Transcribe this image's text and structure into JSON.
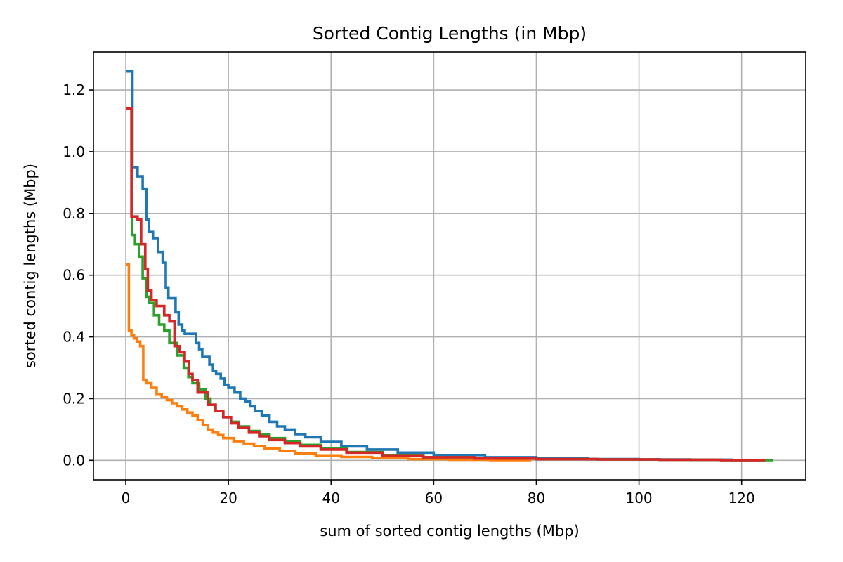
{
  "chart_data": {
    "type": "line",
    "title": "Sorted Contig Lengths (in Mbp)",
    "xlabel": "sum of sorted contig lengths (Mbp)",
    "ylabel": "sorted contig lengths (Mbp)",
    "xlim": [
      -6.3,
      132.5
    ],
    "ylim": [
      -0.063,
      1.323
    ],
    "xticks": [
      0,
      20,
      40,
      60,
      80,
      100,
      120
    ],
    "yticks": [
      0.0,
      0.2,
      0.4,
      0.6,
      0.8,
      1.0,
      1.2
    ],
    "xtick_labels": [
      "0",
      "20",
      "40",
      "60",
      "80",
      "100",
      "120"
    ],
    "ytick_labels": [
      "0.0",
      "0.2",
      "0.4",
      "0.6",
      "0.8",
      "1.0",
      "1.2"
    ],
    "grid": true,
    "step": true,
    "colors": {
      "axis": "#000000",
      "grid": "#b0b0b0"
    },
    "series": [
      {
        "color": "#1f77b4",
        "x": [
          0,
          1.3,
          1.3,
          2.3,
          2.3,
          3.3,
          3.3,
          4.0,
          4.0,
          4.5,
          4.5,
          5.3,
          5.3,
          6.3,
          6.3,
          7.2,
          7.2,
          7.8,
          7.8,
          8.3,
          8.3,
          9.7,
          9.7,
          10.3,
          10.3,
          11.0,
          11.0,
          11.5,
          11.5,
          13.7,
          13.7,
          14.3,
          14.3,
          14.9,
          14.9,
          16.3,
          16.3,
          17.0,
          17.0,
          17.6,
          17.6,
          18.5,
          18.5,
          19.2,
          19.2,
          20.0,
          20.0,
          21.2,
          21.2,
          22.3,
          22.3,
          23.3,
          23.3,
          24.3,
          24.3,
          25.2,
          25.2,
          26.5,
          26.5,
          28.0,
          28.0,
          29.5,
          29.5,
          31.0,
          31.0,
          33.0,
          33.0,
          35.0,
          35.0,
          38.0,
          38.0,
          42.0,
          42.0,
          47.0,
          47.0,
          53.0,
          53.0,
          60.0,
          60.0,
          70.0,
          70.0,
          80.0,
          80.0,
          90.0,
          90.0,
          100.0,
          100.0,
          110.0,
          110.0,
          118.0,
          118.0,
          124.6
        ],
        "y": [
          1.26,
          1.26,
          0.95,
          0.95,
          0.92,
          0.92,
          0.88,
          0.88,
          0.78,
          0.78,
          0.74,
          0.74,
          0.72,
          0.72,
          0.675,
          0.675,
          0.64,
          0.64,
          0.56,
          0.56,
          0.525,
          0.525,
          0.48,
          0.48,
          0.44,
          0.44,
          0.42,
          0.42,
          0.41,
          0.41,
          0.38,
          0.38,
          0.36,
          0.36,
          0.335,
          0.335,
          0.31,
          0.31,
          0.29,
          0.29,
          0.28,
          0.28,
          0.265,
          0.265,
          0.245,
          0.245,
          0.235,
          0.235,
          0.22,
          0.22,
          0.2,
          0.2,
          0.19,
          0.19,
          0.175,
          0.175,
          0.16,
          0.16,
          0.145,
          0.145,
          0.125,
          0.125,
          0.11,
          0.11,
          0.1,
          0.1,
          0.085,
          0.085,
          0.075,
          0.075,
          0.06,
          0.06,
          0.045,
          0.045,
          0.035,
          0.035,
          0.025,
          0.025,
          0.017,
          0.017,
          0.01,
          0.01,
          0.006,
          0.006,
          0.004,
          0.004,
          0.003,
          0.003,
          0.002,
          0.002,
          0.001,
          0.001
        ]
      },
      {
        "color": "#ff7f0e",
        "x": [
          0,
          0.6,
          0.6,
          1.1,
          1.1,
          1.6,
          1.6,
          2.2,
          2.2,
          2.8,
          2.8,
          3.4,
          3.4,
          4.0,
          4.0,
          5.0,
          5.0,
          6.0,
          6.0,
          7.0,
          7.0,
          8.0,
          8.0,
          9.0,
          9.0,
          10.0,
          10.0,
          11.0,
          11.0,
          12.0,
          12.0,
          13.0,
          13.0,
          14.0,
          14.0,
          15.0,
          15.0,
          16.0,
          16.0,
          17.0,
          17.0,
          18.0,
          18.0,
          19.0,
          19.0,
          21.0,
          21.0,
          23.0,
          23.0,
          25.0,
          25.0,
          27.0,
          27.0,
          30.0,
          30.0,
          33.0,
          33.0,
          37.0,
          37.0,
          42.0,
          42.0,
          48.0,
          48.0,
          55.0,
          55.0,
          63.0,
          63.0,
          71.0,
          71.0,
          79.0
        ],
        "y": [
          0.635,
          0.635,
          0.42,
          0.42,
          0.405,
          0.405,
          0.395,
          0.395,
          0.385,
          0.385,
          0.37,
          0.37,
          0.26,
          0.26,
          0.25,
          0.25,
          0.235,
          0.235,
          0.215,
          0.215,
          0.205,
          0.205,
          0.195,
          0.195,
          0.185,
          0.185,
          0.175,
          0.175,
          0.165,
          0.165,
          0.155,
          0.155,
          0.145,
          0.145,
          0.13,
          0.13,
          0.115,
          0.115,
          0.1,
          0.1,
          0.09,
          0.09,
          0.082,
          0.082,
          0.072,
          0.072,
          0.062,
          0.062,
          0.054,
          0.054,
          0.046,
          0.046,
          0.038,
          0.038,
          0.03,
          0.03,
          0.023,
          0.023,
          0.016,
          0.016,
          0.011,
          0.011,
          0.007,
          0.007,
          0.004,
          0.004,
          0.002,
          0.002,
          0.001,
          0.001
        ]
      },
      {
        "color": "#2ca02c",
        "x": [
          0,
          1.2,
          1.2,
          1.8,
          1.8,
          2.6,
          2.6,
          3.3,
          3.3,
          4.0,
          4.0,
          4.5,
          4.5,
          5.5,
          5.5,
          6.5,
          6.5,
          7.5,
          7.5,
          8.5,
          8.5,
          10.0,
          10.0,
          11.3,
          11.3,
          12.2,
          12.2,
          13.0,
          13.0,
          14.3,
          14.3,
          15.5,
          15.5,
          16.5,
          16.5,
          17.5,
          17.5,
          19.0,
          19.0,
          20.5,
          20.5,
          22.0,
          22.0,
          24.0,
          24.0,
          26.0,
          26.0,
          28.0,
          28.0,
          31.0,
          31.0,
          34.0,
          34.0,
          38.0,
          38.0,
          43.0,
          43.0,
          50.0,
          50.0,
          58.0,
          58.0,
          68.0,
          68.0,
          80.0,
          80.0,
          92.0,
          92.0,
          104.0,
          104.0,
          116.0,
          116.0,
          126.2
        ],
        "y": [
          1.14,
          1.14,
          0.73,
          0.73,
          0.7,
          0.7,
          0.66,
          0.66,
          0.59,
          0.59,
          0.53,
          0.53,
          0.51,
          0.51,
          0.47,
          0.47,
          0.44,
          0.44,
          0.42,
          0.42,
          0.38,
          0.38,
          0.34,
          0.34,
          0.3,
          0.3,
          0.27,
          0.27,
          0.25,
          0.25,
          0.23,
          0.23,
          0.2,
          0.2,
          0.18,
          0.18,
          0.16,
          0.16,
          0.14,
          0.14,
          0.125,
          0.125,
          0.11,
          0.11,
          0.095,
          0.095,
          0.083,
          0.083,
          0.072,
          0.072,
          0.062,
          0.062,
          0.05,
          0.05,
          0.038,
          0.038,
          0.027,
          0.027,
          0.017,
          0.017,
          0.01,
          0.01,
          0.006,
          0.006,
          0.004,
          0.004,
          0.003,
          0.003,
          0.002,
          0.002,
          0.001,
          0.001
        ]
      },
      {
        "color": "#d62728",
        "x": [
          0,
          1.1,
          1.1,
          2.3,
          2.3,
          3.0,
          3.0,
          3.8,
          3.8,
          4.3,
          4.3,
          5.0,
          5.0,
          6.0,
          6.0,
          7.5,
          7.5,
          8.5,
          8.5,
          9.5,
          9.5,
          10.5,
          10.5,
          11.5,
          11.5,
          12.3,
          12.3,
          13.0,
          13.0,
          14.0,
          14.0,
          16.0,
          16.0,
          17.5,
          17.5,
          19.0,
          19.0,
          20.5,
          20.5,
          22.0,
          22.0,
          24.0,
          24.0,
          26.0,
          26.0,
          28.0,
          28.0,
          31.0,
          31.0,
          34.0,
          34.0,
          38.0,
          38.0,
          43.0,
          43.0,
          50.0,
          50.0,
          58.0,
          58.0,
          68.0,
          68.0,
          80.0,
          80.0,
          92.0,
          92.0,
          104.0,
          104.0,
          116.0,
          116.0,
          124.6
        ],
        "y": [
          1.14,
          1.14,
          0.79,
          0.79,
          0.78,
          0.78,
          0.7,
          0.7,
          0.62,
          0.62,
          0.55,
          0.55,
          0.52,
          0.52,
          0.5,
          0.5,
          0.47,
          0.47,
          0.45,
          0.45,
          0.37,
          0.37,
          0.35,
          0.35,
          0.32,
          0.32,
          0.28,
          0.28,
          0.26,
          0.26,
          0.22,
          0.22,
          0.18,
          0.18,
          0.16,
          0.16,
          0.14,
          0.14,
          0.12,
          0.12,
          0.105,
          0.105,
          0.09,
          0.09,
          0.078,
          0.078,
          0.066,
          0.066,
          0.056,
          0.056,
          0.045,
          0.045,
          0.035,
          0.035,
          0.025,
          0.025,
          0.016,
          0.016,
          0.01,
          0.01,
          0.006,
          0.006,
          0.004,
          0.004,
          0.003,
          0.003,
          0.002,
          0.002,
          0.001,
          0.001
        ]
      }
    ]
  }
}
